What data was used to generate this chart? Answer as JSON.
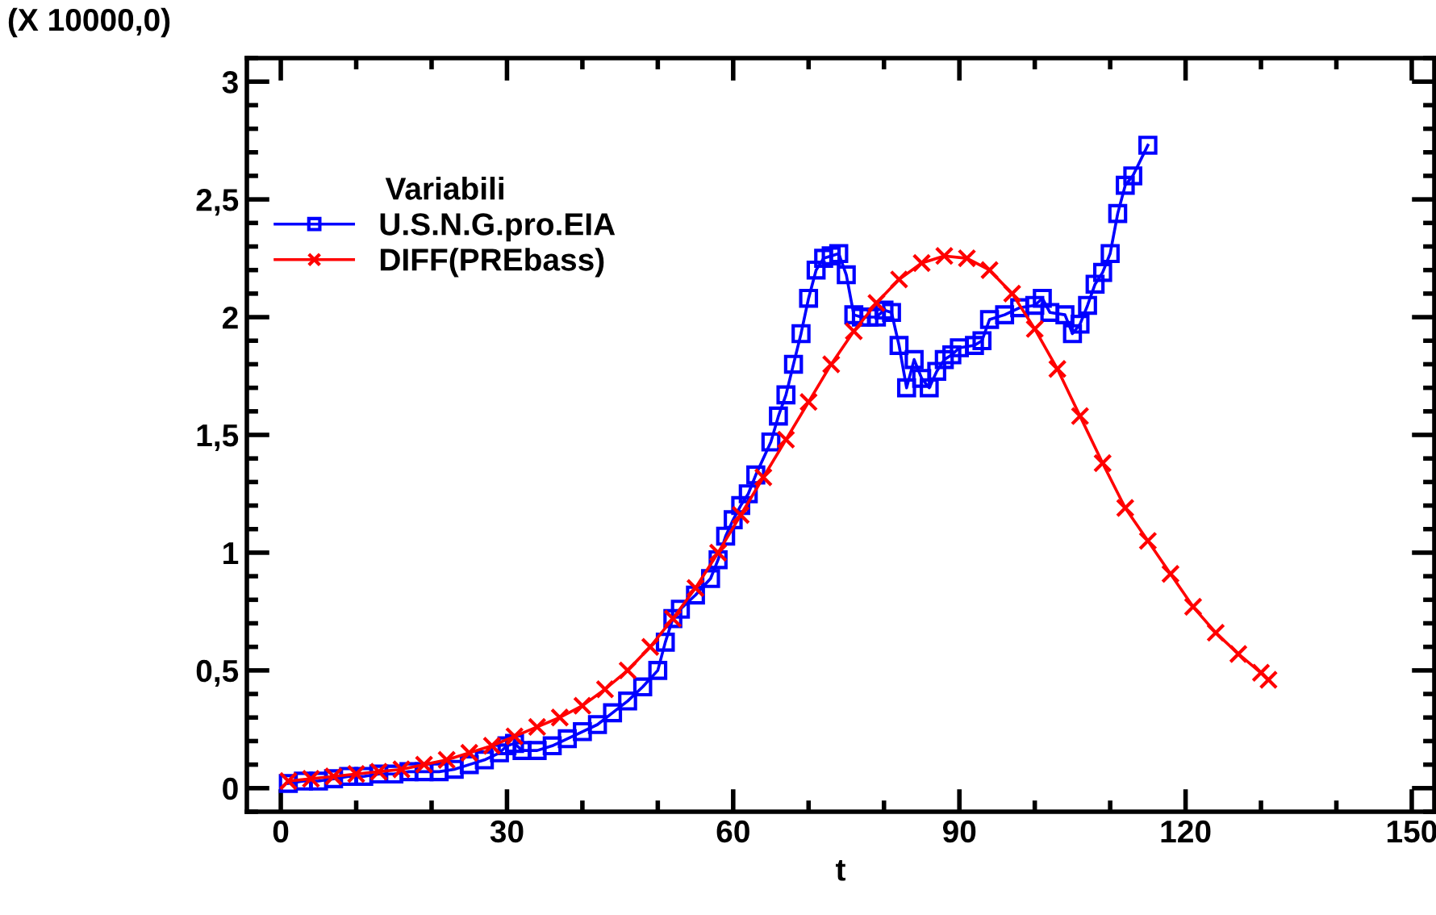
{
  "chart_data": {
    "type": "line",
    "xlabel": "t",
    "ylabel": "(X 10000,0)",
    "legend_title": "Variabili",
    "legend": "top left",
    "grid": false,
    "line_style": "solid",
    "xlim": [
      -4.5,
      153
    ],
    "ylim": [
      -0.1,
      3.1
    ],
    "xticks": [
      0,
      30,
      60,
      90,
      120,
      150
    ],
    "yticks": [
      0,
      {
        "value": 0.5,
        "label": "0,5"
      },
      1,
      {
        "value": 1.5,
        "label": "1,5"
      },
      2,
      {
        "value": 2.5,
        "label": "2,5"
      },
      3
    ],
    "series": [
      {
        "name": "U.S.N.G.pro.EIA",
        "color": "#0000ff",
        "marker": "square",
        "x": [
          1,
          3,
          5,
          7,
          9,
          11,
          13,
          15,
          17,
          19,
          21,
          23,
          25,
          27,
          29,
          30,
          31,
          32,
          34,
          36,
          38,
          40,
          42,
          44,
          46,
          48,
          50,
          51,
          52,
          53,
          55,
          57,
          58,
          59,
          60,
          61,
          62,
          63,
          65,
          66,
          67,
          68,
          69,
          70,
          71,
          72,
          73,
          74,
          75,
          76,
          77,
          78,
          79,
          80,
          81,
          82,
          83,
          84,
          85,
          86,
          87,
          88,
          89,
          90,
          92,
          93,
          94,
          96,
          98,
          100,
          101,
          102,
          104,
          105,
          106,
          107,
          108,
          109,
          110,
          111,
          112,
          113,
          115
        ],
        "values": [
          0.02,
          0.03,
          0.03,
          0.04,
          0.05,
          0.05,
          0.06,
          0.06,
          0.07,
          0.07,
          0.07,
          0.08,
          0.1,
          0.12,
          0.15,
          0.18,
          0.19,
          0.16,
          0.16,
          0.18,
          0.21,
          0.24,
          0.27,
          0.32,
          0.37,
          0.43,
          0.5,
          0.62,
          0.72,
          0.76,
          0.82,
          0.89,
          0.97,
          1.07,
          1.14,
          1.2,
          1.25,
          1.33,
          1.47,
          1.58,
          1.67,
          1.8,
          1.93,
          2.08,
          2.2,
          2.25,
          2.26,
          2.27,
          2.18,
          2.01,
          2.0,
          2.0,
          2.0,
          2.03,
          2.02,
          1.88,
          1.7,
          1.82,
          1.74,
          1.7,
          1.77,
          1.82,
          1.84,
          1.87,
          1.88,
          1.9,
          1.99,
          2.01,
          2.04,
          2.05,
          2.08,
          2.02,
          2.01,
          1.93,
          1.97,
          2.05,
          2.14,
          2.19,
          2.27,
          2.44,
          2.56,
          2.6,
          2.73
        ]
      },
      {
        "name": "DIFF(PREbass)",
        "color": "#ff0000",
        "marker": "cross",
        "x": [
          1,
          4,
          7,
          10,
          13,
          16,
          19,
          22,
          25,
          28,
          31,
          34,
          37,
          40,
          43,
          46,
          49,
          52,
          55,
          58,
          61,
          64,
          67,
          70,
          73,
          76,
          79,
          82,
          85,
          88,
          91,
          94,
          97,
          100,
          103,
          106,
          109,
          112,
          115,
          118,
          121,
          124,
          127,
          130,
          131
        ],
        "values": [
          0.03,
          0.04,
          0.05,
          0.06,
          0.07,
          0.08,
          0.1,
          0.12,
          0.15,
          0.18,
          0.22,
          0.26,
          0.3,
          0.35,
          0.42,
          0.5,
          0.6,
          0.72,
          0.85,
          1.0,
          1.16,
          1.32,
          1.48,
          1.64,
          1.8,
          1.94,
          2.06,
          2.16,
          2.23,
          2.26,
          2.25,
          2.2,
          2.1,
          1.95,
          1.78,
          1.58,
          1.38,
          1.19,
          1.05,
          0.91,
          0.77,
          0.66,
          0.57,
          0.49,
          0.46
        ]
      }
    ]
  }
}
